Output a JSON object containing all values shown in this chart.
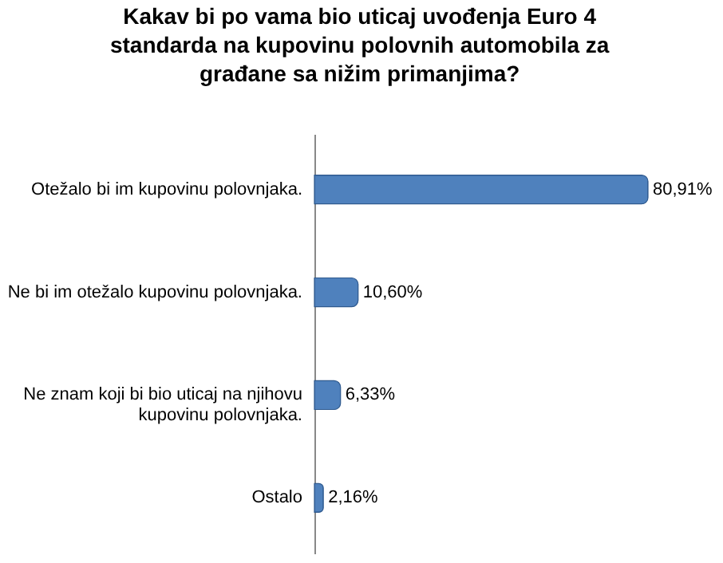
{
  "chart_data": {
    "type": "bar",
    "orientation": "horizontal",
    "title": "Kakav bi po vama bio uticaj uvođenja Euro 4 standarda na kupovinu polovnih automobila za građane sa nižim primanjima?",
    "categories": [
      "Otežalo bi im kupovinu polovnjaka.",
      "Ne bi im otežalo kupovinu polovnjaka.",
      "Ne znam koji bi bio uticaj na njihovu kupovinu polovnjaka.",
      "Ostalo"
    ],
    "values": [
      80.91,
      10.6,
      6.33,
      2.16
    ],
    "value_labels": [
      "80,91%",
      "10,60%",
      "6,33%",
      "2,16%"
    ],
    "color": "#4f81bd",
    "grid": false
  }
}
